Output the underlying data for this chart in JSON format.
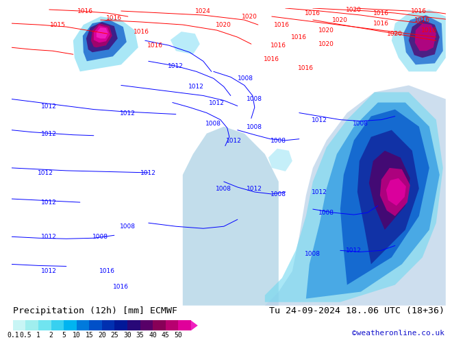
{
  "title_left": "Precipitation (12h) [mm] ECMWF",
  "title_right": "Tu 24-09-2024 18..06 UTC (18+36)",
  "credit": "©weatheronline.co.uk",
  "colorbar_values": [
    "0.1",
    "0.5",
    "1",
    "2",
    "5",
    "10",
    "15",
    "20",
    "25",
    "30",
    "35",
    "40",
    "45",
    "50"
  ],
  "colorbar_colors": [
    "#c8f5f5",
    "#a0eeee",
    "#70e4f0",
    "#38d0f0",
    "#00b4f0",
    "#007adc",
    "#0050c8",
    "#0030b0",
    "#001898",
    "#280878",
    "#580068",
    "#880058",
    "#b80070",
    "#e0009a",
    "#f020c0"
  ],
  "map_bg_color": "#aad870",
  "fig_bg_color": "#ffffff",
  "label_fontsize": 8,
  "credit_color": "#1010cc",
  "title_fontsize": 9.5
}
